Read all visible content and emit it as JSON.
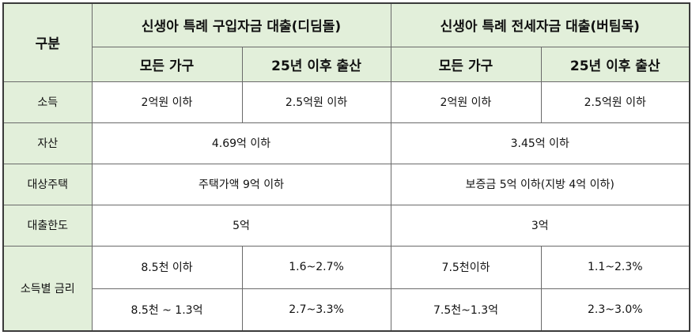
{
  "table": {
    "corner": "구분",
    "groups": [
      "신생아 특례 구입자금 대출(디딤돌)",
      "신생아 특례 전세자금 대출(버팀목)"
    ],
    "subheaders": [
      "모든 가구",
      "25년 이후 출산",
      "모든 가구",
      "25년 이후 출산"
    ],
    "rows": [
      {
        "label": "소득",
        "cells": [
          "2억원 이하",
          "2.5억원 이하",
          "2억원 이하",
          "2.5억원 이하"
        ]
      },
      {
        "label": "자산",
        "cells": [
          "4.69억 이하",
          "3.45억 이하"
        ]
      },
      {
        "label": "대상주택",
        "cells": [
          "주택가액 9억 이하",
          "보증금 5억 이하(지방 4억 이하)"
        ]
      },
      {
        "label": "대출한도",
        "cells": [
          "5억",
          "3억"
        ]
      },
      {
        "label": "소득별 금리",
        "cells": [
          [
            "8.5천 이하",
            "1.6~2.7%",
            "7.5천이하",
            "1.1~2.3%"
          ],
          [
            "8.5천 ~ 1.3억",
            "2.7~3.3%",
            "7.5천~1.3억",
            "2.3~3.0%"
          ]
        ]
      }
    ]
  }
}
